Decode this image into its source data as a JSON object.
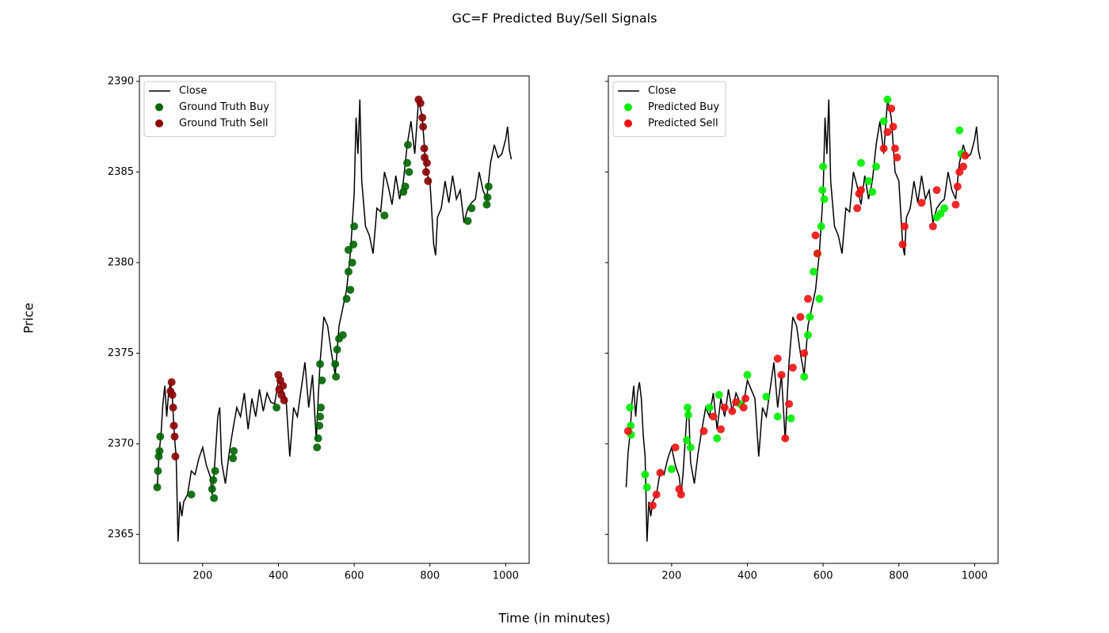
{
  "figure": {
    "title": "GC=F Predicted Buy/Sell Signals",
    "xlabel": "Time (in minutes)",
    "ylabel": "Price"
  },
  "chart_data": [
    {
      "type": "line",
      "xlim": [
        33,
        1062
      ],
      "ylim": [
        2363.4,
        2390.3
      ],
      "xticks": [
        200,
        400,
        600,
        800,
        1000
      ],
      "yticks": [
        2365,
        2370,
        2375,
        2380,
        2385,
        2390
      ],
      "ytick_labels": true,
      "legend": "upper left",
      "series": [
        {
          "name": "Close",
          "kind": "line",
          "color": "#000000",
          "x": [
            80,
            85,
            90,
            95,
            100,
            105,
            110,
            115,
            120,
            125,
            130,
            135,
            140,
            145,
            150,
            160,
            170,
            180,
            190,
            200,
            210,
            220,
            225,
            230,
            240,
            245,
            250,
            260,
            270,
            280,
            290,
            300,
            310,
            320,
            330,
            340,
            350,
            360,
            370,
            380,
            390,
            400,
            410,
            420,
            430,
            440,
            450,
            460,
            470,
            480,
            490,
            500,
            505,
            510,
            520,
            530,
            540,
            550,
            560,
            570,
            580,
            590,
            600,
            605,
            610,
            615,
            620,
            630,
            640,
            650,
            660,
            670,
            680,
            690,
            700,
            710,
            720,
            730,
            740,
            750,
            760,
            770,
            780,
            790,
            800,
            810,
            815,
            820,
            830,
            840,
            850,
            860,
            870,
            880,
            890,
            900,
            910,
            920,
            930,
            940,
            950,
            960,
            970,
            980,
            990,
            1000,
            1005,
            1010,
            1015
          ],
          "values": [
            2367.6,
            2369.5,
            2370.5,
            2372.2,
            2373.2,
            2371.5,
            2372.8,
            2373.4,
            2372.5,
            2370.5,
            2369.3,
            2364.6,
            2366.8,
            2366.0,
            2366.8,
            2367.2,
            2368.5,
            2368.3,
            2369.2,
            2369.8,
            2368.8,
            2368.2,
            2367.2,
            2368.3,
            2371.5,
            2372.0,
            2369.0,
            2367.8,
            2369.5,
            2370.8,
            2372.0,
            2371.5,
            2372.8,
            2370.8,
            2372.5,
            2371.5,
            2373.0,
            2371.8,
            2372.8,
            2372.3,
            2372.2,
            2373.5,
            2373.0,
            2372.5,
            2369.3,
            2372.0,
            2371.5,
            2373.0,
            2374.5,
            2372.0,
            2373.8,
            2370.2,
            2372.5,
            2374.5,
            2377.0,
            2376.5,
            2375.0,
            2373.8,
            2376.5,
            2377.5,
            2378.5,
            2380.5,
            2383.8,
            2388.0,
            2386.0,
            2389.0,
            2384.5,
            2382.0,
            2381.5,
            2380.5,
            2383.0,
            2382.8,
            2385.0,
            2384.2,
            2383.2,
            2384.8,
            2383.5,
            2384.5,
            2386.5,
            2387.8,
            2386.0,
            2389.0,
            2388.0,
            2385.0,
            2384.5,
            2381.0,
            2380.4,
            2382.5,
            2383.0,
            2384.5,
            2383.3,
            2384.8,
            2383.5,
            2384.0,
            2382.2,
            2383.0,
            2383.3,
            2383.5,
            2385.0,
            2384.0,
            2383.5,
            2385.5,
            2386.5,
            2385.8,
            2386.0,
            2386.8,
            2387.5,
            2386.2,
            2385.7
          ]
        },
        {
          "name": "Ground Truth Buy",
          "kind": "scatter",
          "color": "#006400",
          "x": [
            80,
            82,
            84,
            86,
            88,
            170,
            225,
            228,
            230,
            233,
            280,
            282,
            395,
            502,
            505,
            508,
            510,
            512,
            510,
            515,
            550,
            552,
            555,
            560,
            570,
            580,
            585,
            590,
            595,
            598,
            600,
            585,
            680,
            730,
            735,
            740,
            742,
            745,
            900,
            910,
            950,
            955,
            952
          ],
          "values": [
            2367.6,
            2368.5,
            2369.3,
            2369.6,
            2370.4,
            2367.2,
            2367.5,
            2368.0,
            2367.0,
            2368.5,
            2369.2,
            2369.6,
            2372.0,
            2369.8,
            2370.3,
            2371.0,
            2371.5,
            2372.0,
            2374.4,
            2373.5,
            2374.4,
            2373.7,
            2375.2,
            2375.8,
            2376.0,
            2378.0,
            2379.5,
            2378.5,
            2380.0,
            2381.0,
            2382.0,
            2380.7,
            2382.6,
            2383.9,
            2384.2,
            2385.5,
            2386.5,
            2385.0,
            2382.3,
            2383.0,
            2383.2,
            2384.2,
            2383.6
          ]
        },
        {
          "name": "Ground Truth Sell",
          "kind": "scatter",
          "color": "#8b0000",
          "x": [
            115,
            118,
            120,
            122,
            124,
            126,
            128,
            400,
            402,
            405,
            408,
            412,
            415,
            770,
            775,
            780,
            782,
            785,
            786,
            790,
            792,
            795
          ],
          "values": [
            2372.9,
            2373.4,
            2372.7,
            2372.0,
            2371.0,
            2370.4,
            2369.3,
            2373.8,
            2373.0,
            2373.5,
            2372.7,
            2373.2,
            2372.4,
            2389.0,
            2388.8,
            2388.0,
            2387.5,
            2386.3,
            2385.8,
            2385.0,
            2385.5,
            2384.5
          ]
        }
      ]
    },
    {
      "type": "line",
      "xlim": [
        33,
        1062
      ],
      "ylim": [
        2363.4,
        2390.3
      ],
      "xticks": [
        200,
        400,
        600,
        800,
        1000
      ],
      "yticks": [
        2365,
        2370,
        2375,
        2380,
        2385,
        2390
      ],
      "ytick_labels": false,
      "legend": "upper left",
      "series": [
        {
          "name": "Close",
          "kind": "line",
          "color": "#000000",
          "x": [
            80,
            85,
            90,
            95,
            100,
            105,
            110,
            115,
            120,
            125,
            130,
            135,
            140,
            145,
            150,
            160,
            170,
            180,
            190,
            200,
            210,
            220,
            225,
            230,
            240,
            245,
            250,
            260,
            270,
            280,
            290,
            300,
            310,
            320,
            330,
            340,
            350,
            360,
            370,
            380,
            390,
            400,
            410,
            420,
            430,
            440,
            450,
            460,
            470,
            480,
            490,
            500,
            505,
            510,
            520,
            530,
            540,
            550,
            560,
            570,
            580,
            590,
            600,
            605,
            610,
            615,
            620,
            630,
            640,
            650,
            660,
            670,
            680,
            690,
            700,
            710,
            720,
            730,
            740,
            750,
            760,
            770,
            780,
            790,
            800,
            810,
            815,
            820,
            830,
            840,
            850,
            860,
            870,
            880,
            890,
            900,
            910,
            920,
            930,
            940,
            950,
            960,
            970,
            980,
            990,
            1000,
            1005,
            1010,
            1015
          ],
          "values": [
            2367.6,
            2369.5,
            2370.5,
            2372.2,
            2373.2,
            2371.5,
            2372.8,
            2373.4,
            2372.5,
            2370.5,
            2369.3,
            2364.6,
            2366.8,
            2366.0,
            2366.8,
            2367.2,
            2368.5,
            2368.3,
            2369.2,
            2369.8,
            2368.8,
            2368.2,
            2367.2,
            2368.3,
            2371.5,
            2372.0,
            2369.0,
            2367.8,
            2369.5,
            2370.8,
            2372.0,
            2371.5,
            2372.8,
            2370.8,
            2372.5,
            2371.5,
            2373.0,
            2371.8,
            2372.8,
            2372.3,
            2372.2,
            2373.5,
            2373.0,
            2372.5,
            2369.3,
            2372.0,
            2371.5,
            2373.0,
            2374.5,
            2372.0,
            2373.8,
            2370.2,
            2372.5,
            2374.5,
            2377.0,
            2376.5,
            2375.0,
            2373.8,
            2376.5,
            2377.5,
            2378.5,
            2380.5,
            2383.8,
            2388.0,
            2386.0,
            2389.0,
            2384.5,
            2382.0,
            2381.5,
            2380.5,
            2383.0,
            2382.8,
            2385.0,
            2384.2,
            2383.2,
            2384.8,
            2383.5,
            2384.5,
            2386.5,
            2387.8,
            2386.0,
            2389.0,
            2388.0,
            2385.0,
            2384.5,
            2381.0,
            2380.4,
            2382.5,
            2383.0,
            2384.5,
            2383.3,
            2384.8,
            2383.5,
            2384.0,
            2382.2,
            2383.0,
            2383.3,
            2383.5,
            2385.0,
            2384.0,
            2383.5,
            2385.5,
            2386.5,
            2385.8,
            2386.0,
            2386.8,
            2387.5,
            2386.2,
            2385.7
          ]
        },
        {
          "name": "Predicted Buy",
          "kind": "scatter",
          "color": "#00ee00",
          "x": [
            90,
            92,
            93,
            130,
            135,
            200,
            240,
            242,
            244,
            250,
            300,
            320,
            325,
            380,
            400,
            450,
            480,
            515,
            550,
            560,
            565,
            575,
            585,
            590,
            595,
            598,
            600,
            603,
            700,
            720,
            730,
            740,
            760,
            770,
            900,
            910,
            920,
            960,
            965
          ],
          "values": [
            2372.0,
            2371.0,
            2370.5,
            2368.3,
            2367.6,
            2368.6,
            2370.2,
            2372.0,
            2371.6,
            2369.8,
            2372.0,
            2370.3,
            2372.7,
            2372.2,
            2373.8,
            2372.6,
            2371.5,
            2371.4,
            2373.7,
            2376.0,
            2377.0,
            2379.5,
            2380.5,
            2378.0,
            2382.0,
            2384.0,
            2385.3,
            2383.5,
            2385.5,
            2384.5,
            2383.9,
            2385.3,
            2387.8,
            2389.0,
            2382.5,
            2382.7,
            2383.0,
            2387.3,
            2386.0
          ]
        },
        {
          "name": "Predicted Sell",
          "kind": "scatter",
          "color": "#ee1111",
          "x": [
            85,
            150,
            160,
            170,
            210,
            220,
            225,
            285,
            310,
            330,
            340,
            360,
            370,
            390,
            395,
            480,
            490,
            500,
            510,
            520,
            540,
            550,
            560,
            580,
            585,
            690,
            695,
            700,
            760,
            770,
            780,
            785,
            790,
            795,
            810,
            815,
            860,
            890,
            900,
            950,
            955,
            960,
            970,
            975
          ],
          "values": [
            2370.7,
            2366.6,
            2367.2,
            2368.4,
            2369.8,
            2367.5,
            2367.2,
            2370.7,
            2371.5,
            2370.8,
            2372.0,
            2371.8,
            2372.3,
            2372.0,
            2372.5,
            2374.7,
            2373.8,
            2370.3,
            2372.2,
            2374.2,
            2377.0,
            2375.0,
            2378.0,
            2381.5,
            2380.5,
            2383.0,
            2383.8,
            2384.0,
            2386.3,
            2387.2,
            2388.5,
            2387.5,
            2386.3,
            2385.8,
            2381.0,
            2382.0,
            2383.3,
            2382.0,
            2384.0,
            2383.2,
            2384.2,
            2385.0,
            2385.3,
            2385.9
          ]
        }
      ]
    }
  ]
}
